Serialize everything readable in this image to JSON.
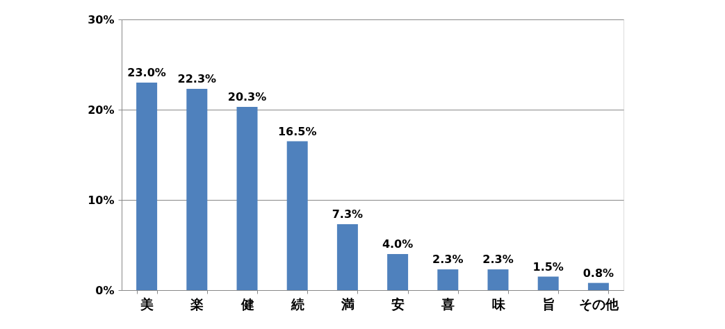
{
  "chart_data": {
    "type": "bar",
    "categories": [
      "美",
      "楽",
      "健",
      "続",
      "満",
      "安",
      "喜",
      "味",
      "旨",
      "その他"
    ],
    "values": [
      23.0,
      22.3,
      20.3,
      16.5,
      7.3,
      4.0,
      2.3,
      2.3,
      1.5,
      0.8
    ],
    "value_labels": [
      "23.0%",
      "22.3%",
      "20.3%",
      "16.5%",
      "7.3%",
      "4.0%",
      "2.3%",
      "2.3%",
      "1.5%",
      "0.8%"
    ],
    "color": "#4f81bd",
    "ylim": [
      0,
      30
    ],
    "yticks": [
      {
        "value": 0,
        "label": "0%"
      },
      {
        "value": 10,
        "label": "10%"
      },
      {
        "value": 20,
        "label": "20%"
      },
      {
        "value": 30,
        "label": "30%"
      }
    ],
    "grid": "y"
  }
}
